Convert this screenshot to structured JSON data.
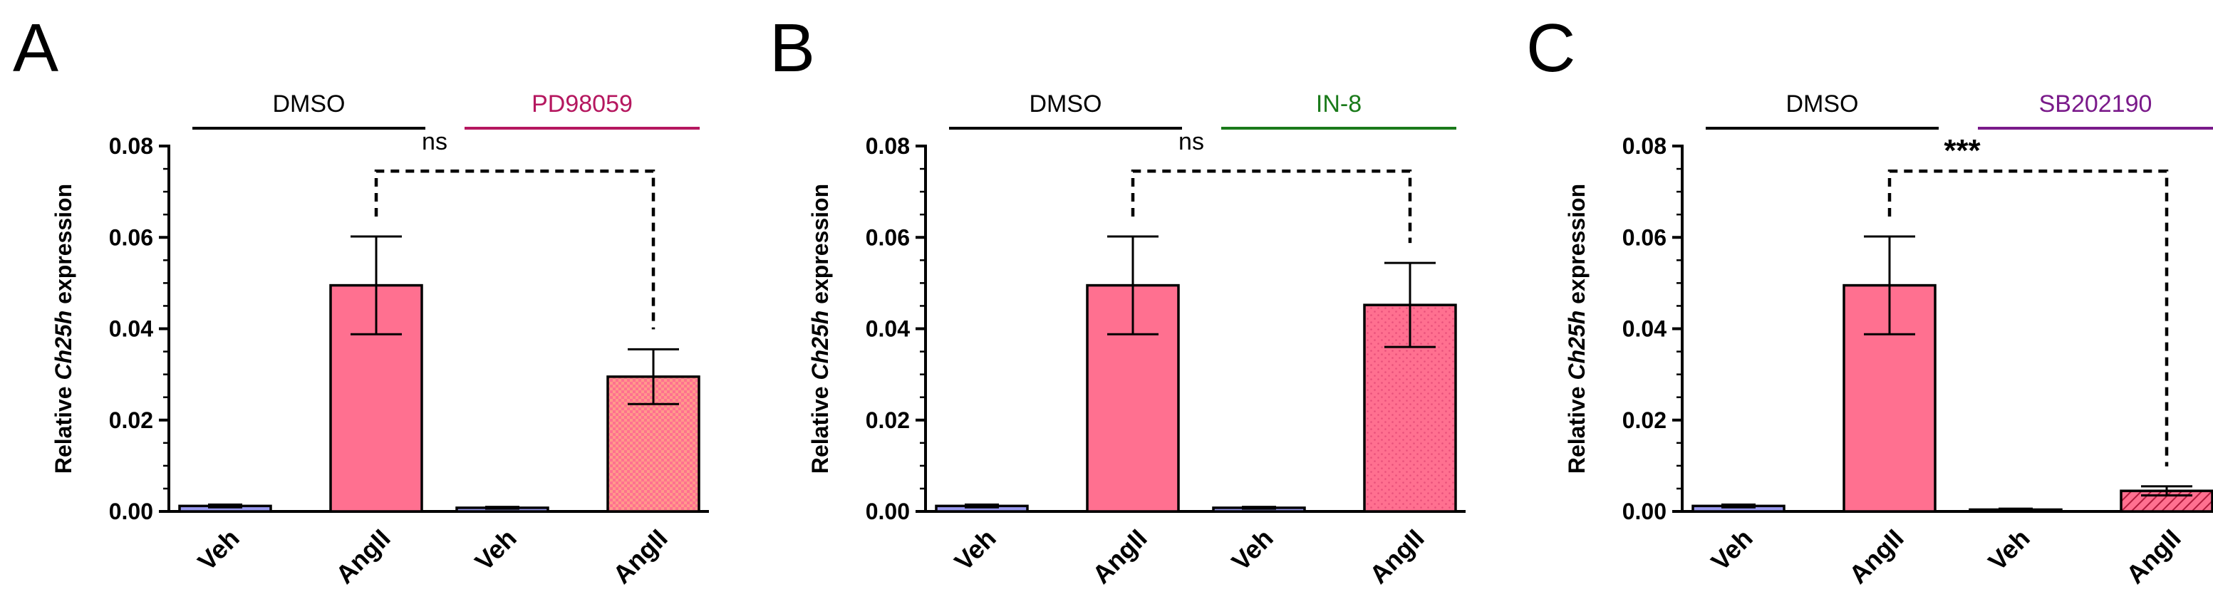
{
  "figure": {
    "y_label_prefix": "Relative ",
    "y_label_gene": "Ch25h",
    "y_label_suffix": " expression",
    "colors": {
      "angii": "#ff7090",
      "veh": "#9999ee",
      "pattern_dots": "#e8507a",
      "hatch": "#b01a3c"
    }
  },
  "chart_data": [
    {
      "type": "bar",
      "panel": "A",
      "categories": [
        "Veh",
        "AngII",
        "Veh",
        "AngII"
      ],
      "values": [
        0.0012,
        0.0495,
        0.0008,
        0.0295
      ],
      "errors": [
        0.0003,
        0.0107,
        0.0002,
        0.006
      ],
      "fills": [
        "solid-veh",
        "solid",
        "solid-veh",
        "checker"
      ],
      "ylim": [
        0,
        0.08
      ],
      "yticks": [
        "0.00",
        "0.02",
        "0.04",
        "0.06",
        "0.08"
      ],
      "groups": [
        {
          "label": "DMSO",
          "color": "#000000"
        },
        {
          "label": "PD98059",
          "color": "#b5175f"
        }
      ],
      "comparison": {
        "label": "ns",
        "from": 1,
        "to": 3,
        "bold": false
      }
    },
    {
      "type": "bar",
      "panel": "B",
      "categories": [
        "Veh",
        "AngII",
        "Veh",
        "AngII"
      ],
      "values": [
        0.0012,
        0.0495,
        0.0008,
        0.0452
      ],
      "errors": [
        0.0003,
        0.0107,
        0.0002,
        0.0092
      ],
      "fills": [
        "solid-veh",
        "solid",
        "solid-veh",
        "dots"
      ],
      "ylim": [
        0,
        0.08
      ],
      "yticks": [
        "0.00",
        "0.02",
        "0.04",
        "0.06",
        "0.08"
      ],
      "groups": [
        {
          "label": "DMSO",
          "color": "#000000"
        },
        {
          "label": "IN-8",
          "color": "#1a7a1a"
        }
      ],
      "comparison": {
        "label": "ns",
        "from": 1,
        "to": 3,
        "bold": false
      }
    },
    {
      "type": "bar",
      "panel": "C",
      "categories": [
        "Veh",
        "AngII",
        "Veh",
        "AngII"
      ],
      "values": [
        0.0012,
        0.0495,
        0.0004,
        0.0045
      ],
      "errors": [
        0.0003,
        0.0107,
        0.0002,
        0.001
      ],
      "fills": [
        "solid-veh",
        "solid",
        "solid-veh",
        "hatch"
      ],
      "ylim": [
        0,
        0.08
      ],
      "yticks": [
        "0.00",
        "0.02",
        "0.04",
        "0.06",
        "0.08"
      ],
      "groups": [
        {
          "label": "DMSO",
          "color": "#000000"
        },
        {
          "label": "SB202190",
          "color": "#7a1a8a"
        }
      ],
      "comparison": {
        "label": "***",
        "from": 1,
        "to": 3,
        "bold": true
      }
    }
  ]
}
